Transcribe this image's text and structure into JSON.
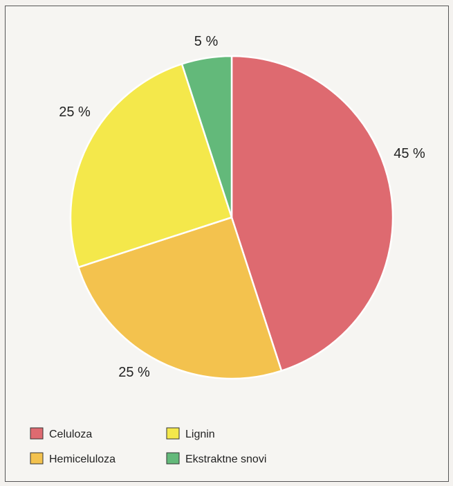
{
  "chart_data": {
    "type": "pie",
    "title": "",
    "categories": [
      "Celuloza",
      "Hemiceluloza",
      "Lignin",
      "Ekstraktne snovi"
    ],
    "values": [
      45,
      25,
      25,
      5
    ],
    "data_labels": [
      "45 %",
      "25 %",
      "25 %",
      "5 %"
    ],
    "colors": [
      "#de6a70",
      "#f3c24e",
      "#f4e84b",
      "#63b97a"
    ],
    "start_angle_deg": 0,
    "direction": "clockwise",
    "legend": {
      "placement": "bottom-left",
      "columns": 2,
      "entries": [
        {
          "label": "Celuloza",
          "color": "#de6a70"
        },
        {
          "label": "Lignin",
          "color": "#f4e84b"
        },
        {
          "label": "Hemiceluloza",
          "color": "#f3c24e"
        },
        {
          "label": "Ekstraktne snovi",
          "color": "#63b97a"
        }
      ]
    }
  }
}
